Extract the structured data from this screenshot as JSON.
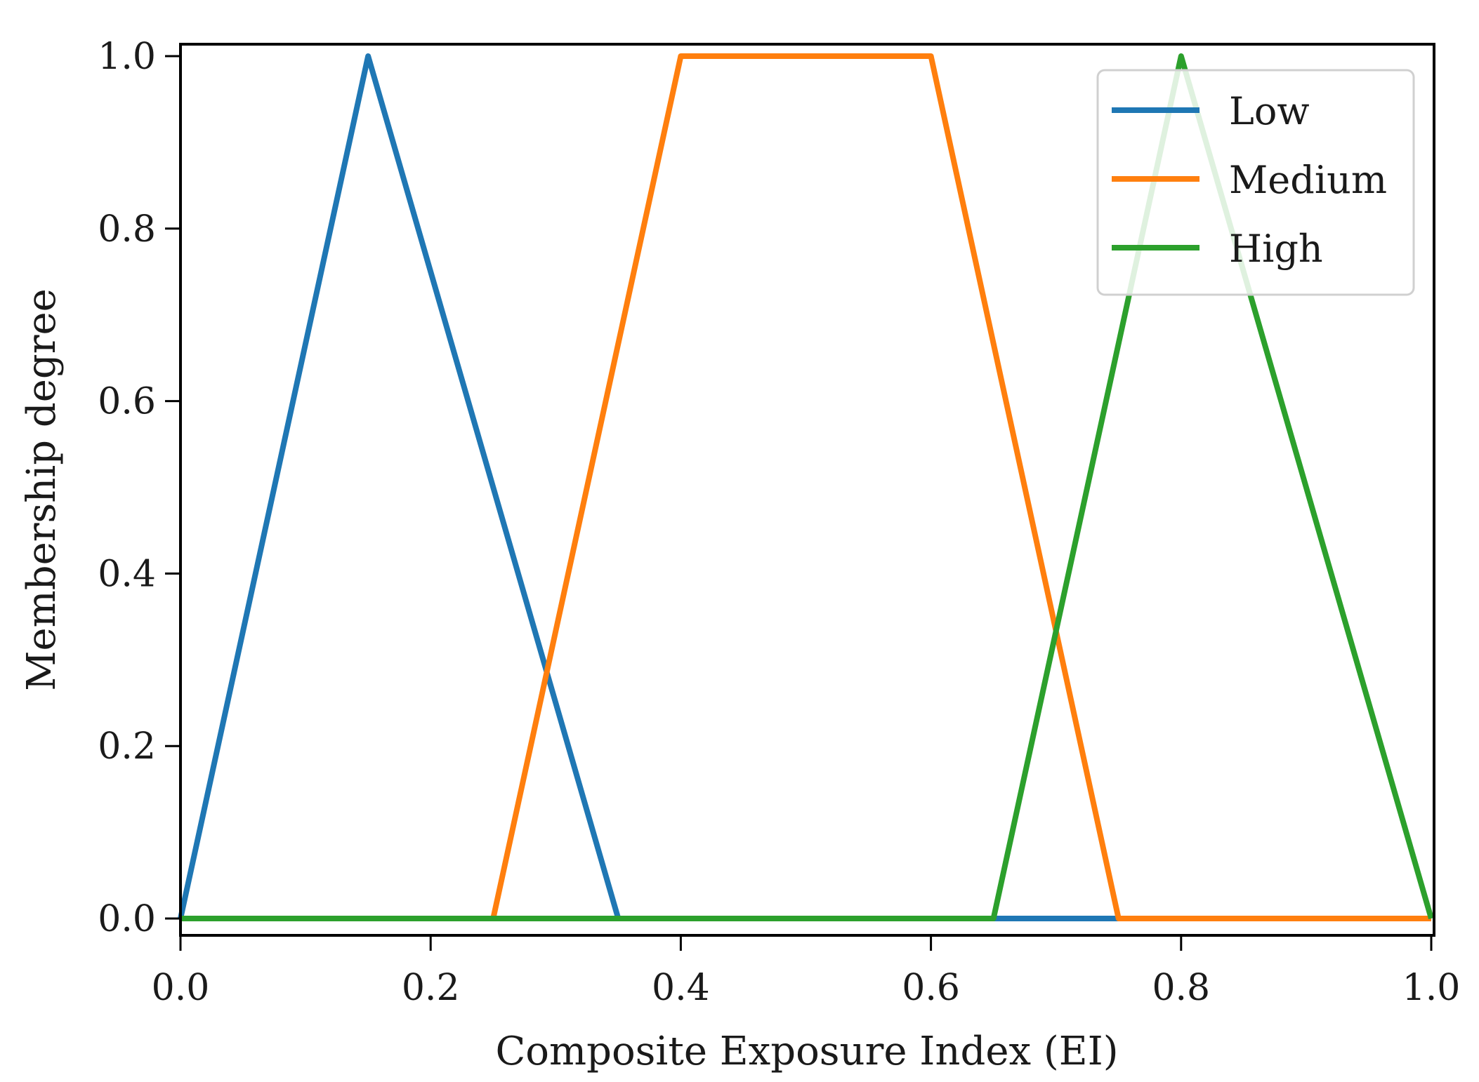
{
  "chart_data": {
    "type": "line",
    "title": "",
    "xlabel": "Composite Exposure Index (EI)",
    "ylabel": "Membership degree",
    "xlim": [
      0.0,
      1.0
    ],
    "ylim": [
      0.0,
      1.0
    ],
    "grid": false,
    "legend_position": "top-right",
    "xticks": [
      "0.0",
      "0.2",
      "0.4",
      "0.6",
      "0.8",
      "1.0"
    ],
    "yticks": [
      "0.0",
      "0.2",
      "0.4",
      "0.6",
      "0.8",
      "1.0"
    ],
    "series": [
      {
        "name": "Low",
        "color": "#1f77b4",
        "x": [
          0.0,
          0.15,
          0.35,
          0.75
        ],
        "y": [
          0.0,
          1.0,
          0.0,
          0.0
        ]
      },
      {
        "name": "Medium",
        "color": "#ff7f0e",
        "x": [
          0.25,
          0.4,
          0.6,
          0.75,
          1.0
        ],
        "y": [
          0.0,
          1.0,
          1.0,
          0.0,
          0.0
        ]
      },
      {
        "name": "High",
        "color": "#2ca02c",
        "x": [
          0.0,
          0.65,
          0.8,
          1.0
        ],
        "y": [
          0.0,
          0.0,
          1.0,
          0.0
        ]
      }
    ]
  }
}
